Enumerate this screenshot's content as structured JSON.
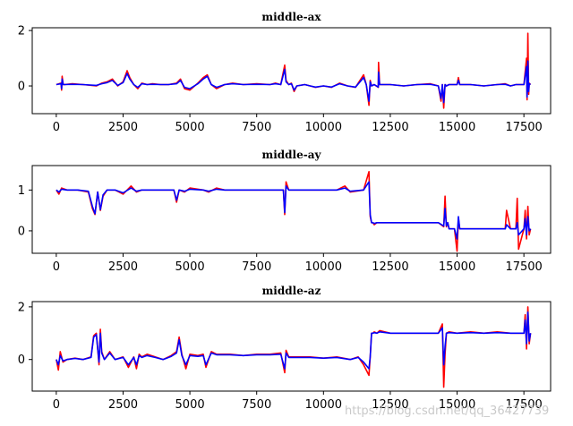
{
  "watermark": "https://blog.csdn.net/qq_36427739",
  "chart_data": [
    {
      "type": "line",
      "title": "middle-ax",
      "xlim": [
        -900,
        18500
      ],
      "ylim": [
        -1.0,
        2.1
      ],
      "xticks": [
        0,
        2500,
        5000,
        7500,
        10000,
        12500,
        15000,
        17500
      ],
      "yticks": [
        0,
        2
      ],
      "series": [
        {
          "color": "#ff0000",
          "x": [
            0,
            180,
            200,
            220,
            260,
            300,
            600,
            1000,
            1500,
            1700,
            1900,
            2100,
            2300,
            2500,
            2650,
            2750,
            2900,
            3050,
            3200,
            3400,
            3600,
            3900,
            4200,
            4500,
            4650,
            4800,
            5000,
            5300,
            5500,
            5650,
            5800,
            6000,
            6300,
            6600,
            7000,
            7500,
            8000,
            8200,
            8400,
            8550,
            8600,
            8700,
            8800,
            8900,
            9000,
            9300,
            9500,
            9700,
            10000,
            10300,
            10600,
            10900,
            11200,
            11500,
            11600,
            11700,
            11750,
            11800,
            11900,
            12050,
            12060,
            12100,
            12500,
            13000,
            13500,
            14000,
            14300,
            14400,
            14450,
            14500,
            14550,
            14600,
            14700,
            15000,
            15050,
            15100,
            15500,
            16000,
            16500,
            16800,
            17000,
            17200,
            17500,
            17600,
            17620,
            17650,
            17680,
            17700,
            17750
          ],
          "y": [
            0.05,
            0.1,
            -0.15,
            0.35,
            0.05,
            0.05,
            0.08,
            0.05,
            0.0,
            0.1,
            0.15,
            0.25,
            0.0,
            0.15,
            0.55,
            0.3,
            0.05,
            -0.1,
            0.1,
            0.05,
            0.08,
            0.05,
            0.05,
            0.1,
            0.25,
            -0.1,
            -0.15,
            0.1,
            0.3,
            0.4,
            0.05,
            -0.1,
            0.05,
            0.1,
            0.05,
            0.08,
            0.05,
            0.1,
            0.05,
            0.75,
            0.2,
            0.05,
            0.1,
            -0.2,
            0.0,
            0.05,
            0.0,
            -0.05,
            0.0,
            -0.05,
            0.1,
            0.0,
            -0.05,
            0.4,
            0.05,
            -0.7,
            0.2,
            0.0,
            0.05,
            -0.05,
            0.85,
            0.05,
            0.05,
            0.0,
            0.05,
            0.08,
            0.0,
            -0.55,
            0.05,
            -0.8,
            0.05,
            0.0,
            0.05,
            0.05,
            0.3,
            0.05,
            0.05,
            0.0,
            0.05,
            0.08,
            0.0,
            0.05,
            0.05,
            1.0,
            -0.5,
            1.9,
            -0.3,
            0.1,
            0.05
          ]
        },
        {
          "color": "#0000ff",
          "x": [
            0,
            180,
            200,
            220,
            260,
            300,
            600,
            1000,
            1500,
            1700,
            1900,
            2100,
            2300,
            2500,
            2650,
            2750,
            2900,
            3050,
            3200,
            3400,
            3600,
            3900,
            4200,
            4500,
            4650,
            4800,
            5000,
            5300,
            5500,
            5650,
            5800,
            6000,
            6300,
            6600,
            7000,
            7500,
            8000,
            8200,
            8400,
            8550,
            8600,
            8700,
            8800,
            8900,
            9000,
            9300,
            9500,
            9700,
            10000,
            10300,
            10600,
            10900,
            11200,
            11500,
            11600,
            11700,
            11750,
            11800,
            11900,
            12050,
            12060,
            12100,
            12500,
            13000,
            13500,
            14000,
            14300,
            14400,
            14450,
            14500,
            14550,
            14600,
            14700,
            15000,
            15050,
            15100,
            15500,
            16000,
            16500,
            16800,
            17000,
            17200,
            17500,
            17600,
            17620,
            17650,
            17680,
            17700,
            17750
          ],
          "y": [
            0.05,
            0.08,
            -0.1,
            0.25,
            0.05,
            0.05,
            0.06,
            0.05,
            0.02,
            0.08,
            0.12,
            0.2,
            0.02,
            0.12,
            0.45,
            0.25,
            0.05,
            -0.05,
            0.08,
            0.05,
            0.06,
            0.05,
            0.05,
            0.08,
            0.2,
            -0.05,
            -0.1,
            0.08,
            0.25,
            0.35,
            0.05,
            -0.05,
            0.05,
            0.08,
            0.05,
            0.06,
            0.05,
            0.08,
            0.05,
            0.6,
            0.15,
            0.05,
            0.08,
            -0.15,
            0.0,
            0.05,
            0.0,
            -0.04,
            0.0,
            -0.04,
            0.08,
            0.0,
            -0.04,
            0.3,
            0.05,
            -0.55,
            0.15,
            0.0,
            0.05,
            -0.04,
            0.5,
            0.05,
            0.05,
            0.0,
            0.05,
            0.06,
            0.0,
            -0.45,
            0.05,
            -0.6,
            0.05,
            0.0,
            0.05,
            0.05,
            0.2,
            0.05,
            0.05,
            0.0,
            0.05,
            0.06,
            0.0,
            0.05,
            0.05,
            0.7,
            -0.4,
            0.9,
            -0.2,
            0.08,
            0.05
          ]
        }
      ]
    },
    {
      "type": "line",
      "title": "middle-ay",
      "xlim": [
        -900,
        18500
      ],
      "ylim": [
        -0.55,
        1.6
      ],
      "xticks": [
        0,
        2500,
        5000,
        7500,
        10000,
        12500,
        15000,
        17500
      ],
      "yticks": [
        0,
        1
      ],
      "series": [
        {
          "color": "#ff0000",
          "x": [
            0,
            100,
            200,
            400,
            800,
            1200,
            1350,
            1450,
            1550,
            1650,
            1750,
            1900,
            2200,
            2500,
            2800,
            3000,
            3200,
            3500,
            4000,
            4400,
            4500,
            4600,
            4800,
            5000,
            5500,
            5700,
            6000,
            6300,
            7000,
            8000,
            8500,
            8550,
            8600,
            8700,
            9000,
            9500,
            10000,
            10500,
            10800,
            11000,
            11500,
            11700,
            11750,
            11800,
            11850,
            11900,
            12000,
            12500,
            13000,
            13500,
            14000,
            14300,
            14500,
            14550,
            14600,
            14650,
            14700,
            14900,
            15000,
            15050,
            15100,
            15500,
            16000,
            16500,
            16800,
            16850,
            17000,
            17200,
            17250,
            17300,
            17500,
            17550,
            17600,
            17650,
            17700,
            17750
          ],
          "y": [
            1.0,
            0.9,
            1.05,
            1.0,
            1.0,
            0.95,
            0.55,
            0.4,
            0.95,
            0.5,
            0.85,
            1.0,
            1.0,
            0.9,
            1.1,
            0.95,
            1.0,
            1.0,
            1.0,
            1.0,
            0.7,
            1.0,
            0.95,
            1.05,
            1.0,
            0.95,
            1.05,
            1.0,
            1.0,
            1.0,
            1.0,
            0.4,
            1.2,
            1.0,
            1.0,
            1.0,
            1.0,
            1.0,
            1.1,
            0.95,
            1.0,
            1.45,
            0.35,
            0.2,
            0.2,
            0.15,
            0.2,
            0.2,
            0.2,
            0.2,
            0.2,
            0.2,
            0.1,
            0.85,
            0.1,
            0.2,
            0.05,
            0.05,
            -0.5,
            0.3,
            0.05,
            0.05,
            0.05,
            0.05,
            0.05,
            0.5,
            0.05,
            0.05,
            0.8,
            -0.45,
            0.05,
            0.5,
            -0.2,
            0.6,
            -0.1,
            0.05
          ]
        },
        {
          "color": "#0000ff",
          "x": [
            0,
            100,
            200,
            400,
            800,
            1200,
            1350,
            1450,
            1550,
            1650,
            1750,
            1900,
            2200,
            2500,
            2800,
            3000,
            3200,
            3500,
            4000,
            4400,
            4500,
            4600,
            4800,
            5000,
            5500,
            5700,
            6000,
            6300,
            7000,
            8000,
            8500,
            8550,
            8600,
            8700,
            9000,
            9500,
            10000,
            10500,
            10800,
            11000,
            11500,
            11700,
            11750,
            11800,
            11850,
            11900,
            12000,
            12500,
            13000,
            13500,
            14000,
            14300,
            14500,
            14550,
            14600,
            14650,
            14700,
            14900,
            15000,
            15050,
            15100,
            15500,
            16000,
            16500,
            16800,
            16850,
            17000,
            17200,
            17250,
            17300,
            17500,
            17550,
            17600,
            17650,
            17700,
            17750
          ],
          "y": [
            1.0,
            0.95,
            1.02,
            1.0,
            1.0,
            0.97,
            0.6,
            0.42,
            0.95,
            0.52,
            0.88,
            1.0,
            1.0,
            0.93,
            1.05,
            0.97,
            1.0,
            1.0,
            1.0,
            1.0,
            0.75,
            1.0,
            0.97,
            1.02,
            1.0,
            0.97,
            1.02,
            1.0,
            1.0,
            1.0,
            1.0,
            0.45,
            1.1,
            1.0,
            1.0,
            1.0,
            1.0,
            1.0,
            1.05,
            0.97,
            1.0,
            1.2,
            0.4,
            0.2,
            0.2,
            0.18,
            0.2,
            0.2,
            0.2,
            0.2,
            0.2,
            0.2,
            0.12,
            0.55,
            0.12,
            0.2,
            0.05,
            0.05,
            -0.2,
            0.35,
            0.05,
            0.05,
            0.05,
            0.05,
            0.05,
            0.15,
            0.05,
            0.05,
            0.2,
            -0.1,
            0.05,
            0.3,
            -0.1,
            0.35,
            0.0,
            0.05
          ]
        }
      ]
    },
    {
      "type": "line",
      "title": "middle-az",
      "xlim": [
        -900,
        18500
      ],
      "ylim": [
        -1.2,
        2.2
      ],
      "xticks": [
        0,
        2500,
        5000,
        7500,
        10000,
        12500,
        15000,
        17500
      ],
      "yticks": [
        0,
        2
      ],
      "series": [
        {
          "color": "#ff0000",
          "x": [
            0,
            80,
            150,
            250,
            400,
            700,
            1000,
            1300,
            1400,
            1500,
            1600,
            1650,
            1700,
            1800,
            2000,
            2200,
            2500,
            2700,
            2900,
            3000,
            3100,
            3200,
            3400,
            3700,
            4000,
            4300,
            4500,
            4600,
            4700,
            4850,
            5000,
            5300,
            5500,
            5600,
            5800,
            6000,
            6500,
            7000,
            7500,
            8000,
            8400,
            8550,
            8600,
            8700,
            9000,
            9500,
            10000,
            10500,
            11000,
            11300,
            11500,
            11700,
            11750,
            11800,
            11850,
            11900,
            12000,
            12100,
            12500,
            13000,
            13500,
            14000,
            14300,
            14450,
            14500,
            14550,
            14600,
            14700,
            15000,
            15500,
            16000,
            16500,
            17000,
            17500,
            17550,
            17600,
            17650,
            17700,
            17750
          ],
          "y": [
            0.0,
            -0.4,
            0.3,
            -0.1,
            0.0,
            0.05,
            0.0,
            0.1,
            0.9,
            1.0,
            -0.2,
            1.15,
            0.3,
            0.0,
            0.3,
            0.0,
            0.1,
            -0.3,
            0.1,
            -0.35,
            0.2,
            0.1,
            0.2,
            0.1,
            0.0,
            0.15,
            0.3,
            0.85,
            0.2,
            -0.35,
            0.2,
            0.15,
            0.2,
            -0.3,
            0.3,
            0.2,
            0.2,
            0.15,
            0.2,
            0.2,
            0.25,
            -0.5,
            0.35,
            0.1,
            0.1,
            0.1,
            0.05,
            0.1,
            0.0,
            0.1,
            -0.2,
            -0.6,
            0.1,
            1.0,
            1.0,
            1.05,
            1.0,
            1.1,
            1.0,
            1.0,
            1.0,
            1.0,
            1.0,
            1.35,
            -1.05,
            0.2,
            1.0,
            1.05,
            1.0,
            1.05,
            1.0,
            1.05,
            1.0,
            1.0,
            1.7,
            0.4,
            2.0,
            0.6,
            1.0
          ]
        },
        {
          "color": "#0000ff",
          "x": [
            0,
            80,
            150,
            250,
            400,
            700,
            1000,
            1300,
            1400,
            1500,
            1600,
            1650,
            1700,
            1800,
            2000,
            2200,
            2500,
            2700,
            2900,
            3000,
            3100,
            3200,
            3400,
            3700,
            4000,
            4300,
            4500,
            4600,
            4700,
            4850,
            5000,
            5300,
            5500,
            5600,
            5800,
            6000,
            6500,
            7000,
            7500,
            8000,
            8400,
            8550,
            8600,
            8700,
            9000,
            9500,
            10000,
            10500,
            11000,
            11300,
            11500,
            11700,
            11750,
            11800,
            11850,
            11900,
            12000,
            12100,
            12500,
            13000,
            13500,
            14000,
            14300,
            14450,
            14500,
            14550,
            14600,
            14700,
            15000,
            15500,
            16000,
            16500,
            17000,
            17500,
            17550,
            17600,
            17650,
            17700,
            17750
          ],
          "y": [
            0.0,
            -0.2,
            0.15,
            -0.05,
            0.0,
            0.04,
            0.0,
            0.08,
            0.85,
            0.95,
            -0.1,
            1.0,
            0.25,
            0.0,
            0.25,
            0.0,
            0.08,
            -0.2,
            0.08,
            -0.2,
            0.15,
            0.08,
            0.15,
            0.08,
            0.0,
            0.12,
            0.25,
            0.75,
            0.15,
            -0.2,
            0.15,
            0.12,
            0.15,
            -0.2,
            0.25,
            0.18,
            0.18,
            0.15,
            0.18,
            0.18,
            0.2,
            -0.35,
            0.25,
            0.08,
            0.08,
            0.08,
            0.05,
            0.08,
            0.0,
            0.08,
            -0.1,
            -0.35,
            0.1,
            1.0,
            1.0,
            1.02,
            1.0,
            1.05,
            1.0,
            1.0,
            1.0,
            1.0,
            1.0,
            1.2,
            -0.2,
            0.5,
            1.0,
            1.02,
            1.0,
            1.02,
            1.0,
            1.02,
            1.0,
            1.0,
            1.5,
            0.6,
            1.8,
            0.7,
            1.0
          ]
        }
      ]
    }
  ]
}
